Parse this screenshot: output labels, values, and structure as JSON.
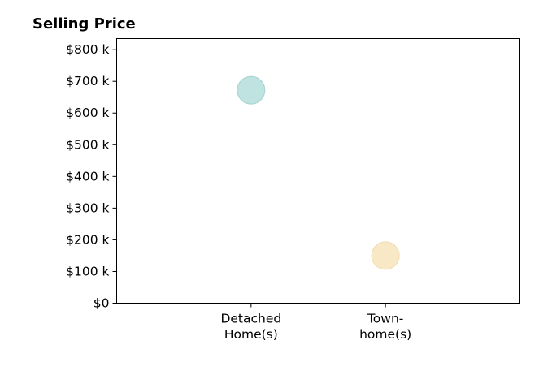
{
  "chart_data": {
    "type": "scatter",
    "title": "Selling Price",
    "xlabel": "",
    "ylabel": "",
    "categories": [
      [
        "Detached",
        "Home(s)"
      ],
      [
        "Town-",
        "home(s)"
      ]
    ],
    "y_ticks": [
      0,
      100,
      200,
      300,
      400,
      500,
      600,
      700,
      800
    ],
    "y_tick_labels": [
      "$0",
      "$100 k",
      "$200 k",
      "$300 k",
      "$400 k",
      "$500 k",
      "$600 k",
      "$700 k",
      "$800 k"
    ],
    "ylim": [
      0,
      835
    ],
    "x_positions": [
      1,
      2
    ],
    "xlim": [
      0,
      3
    ],
    "y_unit": "thousands of dollars",
    "grid": false,
    "points": [
      {
        "category_index": 0,
        "y": 672,
        "color": "#bfe3e0",
        "stroke": "#a6d3cf"
      },
      {
        "category_index": 1,
        "y": 150,
        "color": "#f8e8c6",
        "stroke": "#efdcb0"
      }
    ]
  }
}
